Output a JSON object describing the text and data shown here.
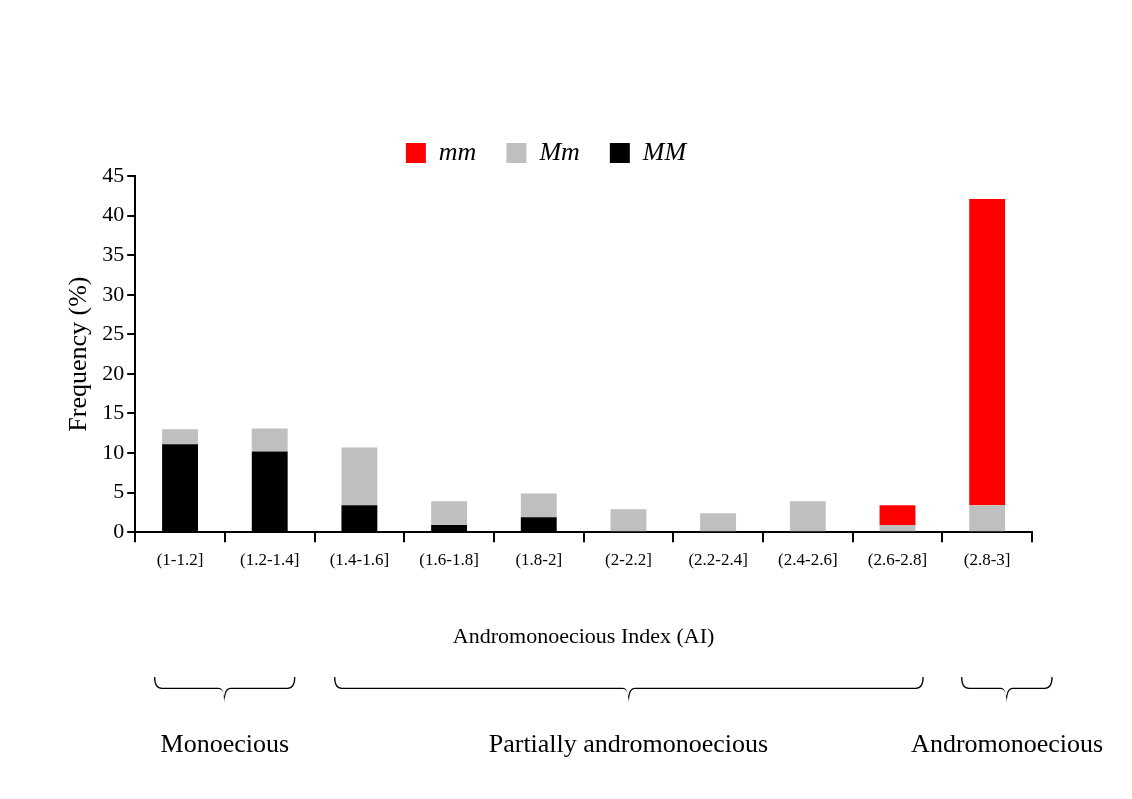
{
  "chart_data": {
    "type": "bar",
    "stacked": true,
    "ylabel": "Frequency (%)",
    "xlabel": "Andromonoecious Index (AI)",
    "categories": [
      "(1-1.2]",
      "(1.2-1.4]",
      "(1.4-1.6]",
      "(1.6-1.8]",
      "(1.8-2]",
      "(2-2.2]",
      "(2.2-2.4]",
      "(2.4-2.6]",
      "(2.6-2.8]",
      "(2.8-3]"
    ],
    "series": [
      {
        "name": "MM",
        "color": "#000000",
        "values": [
          11.1,
          10.2,
          3.4,
          0.9,
          1.9,
          0,
          0,
          0,
          0,
          0
        ]
      },
      {
        "name": "Mm",
        "color": "#bfbfbf",
        "values": [
          1.9,
          2.9,
          7.3,
          3.0,
          3.0,
          2.9,
          2.4,
          3.9,
          0.9,
          3.4
        ]
      },
      {
        "name": "mm",
        "color": "#ff0000",
        "values": [
          0,
          0,
          0,
          0,
          0,
          0,
          0,
          0,
          2.5,
          38.7
        ]
      }
    ],
    "ylim": [
      0,
      45
    ],
    "yticks": [
      0,
      5,
      10,
      15,
      20,
      25,
      30,
      35,
      40,
      45
    ],
    "grid": false,
    "legend": "top",
    "annotations": [
      "Monoecious",
      "Partially andromonoecious",
      "Andromonoecious"
    ]
  }
}
